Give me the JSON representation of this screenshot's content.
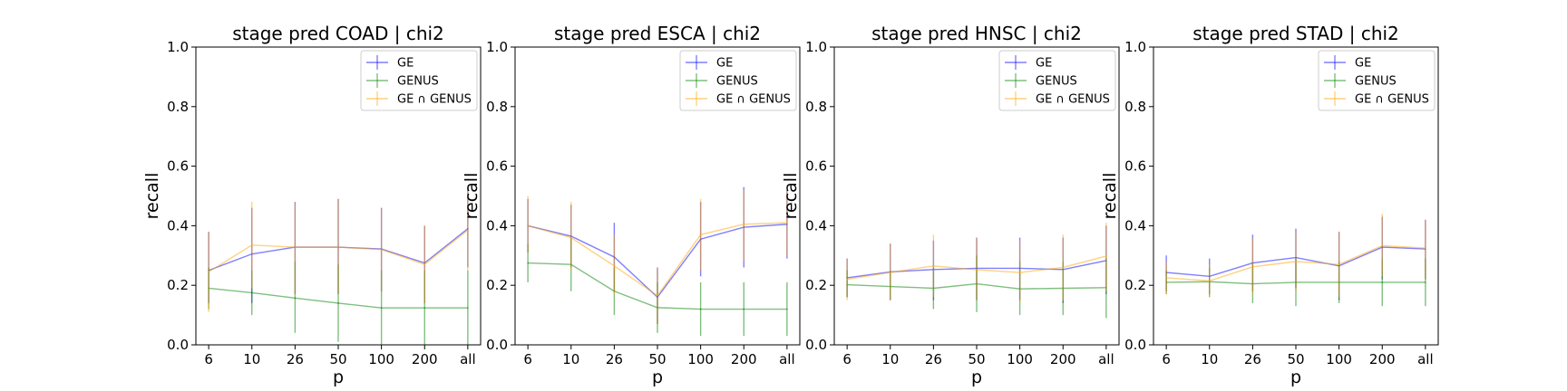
{
  "chart_data": [
    {
      "type": "line",
      "title": "stage pred COAD | chi2",
      "xlabel": "p",
      "ylabel": "recall",
      "categories": [
        "6",
        "10",
        "26",
        "50",
        "100",
        "200",
        "all"
      ],
      "ylim": [
        0,
        1.0
      ],
      "yticks": [
        "0.0",
        "0.2",
        "0.4",
        "0.6",
        "0.8",
        "1.0"
      ],
      "legend": "top-right",
      "series": [
        {
          "name": "GE",
          "values": [
            0.25,
            0.305,
            0.328,
            0.328,
            0.322,
            0.275,
            0.39
          ],
          "lower": [
            0.14,
            0.14,
            0.17,
            0.17,
            0.18,
            0.14,
            0.26
          ],
          "upper": [
            0.38,
            0.46,
            0.48,
            0.49,
            0.46,
            0.4,
            0.53
          ]
        },
        {
          "name": "GENUS",
          "values": [
            0.19,
            0.175,
            0.157,
            0.14,
            0.124,
            0.124,
            0.124
          ],
          "lower": [
            0.12,
            0.1,
            0.04,
            0.01,
            0.0,
            0.0,
            0.0
          ],
          "upper": [
            0.26,
            0.25,
            0.28,
            0.27,
            0.25,
            0.25,
            0.25
          ]
        },
        {
          "name": "GE ∩ GENUS",
          "values": [
            0.245,
            0.335,
            0.328,
            0.328,
            0.32,
            0.27,
            0.385
          ],
          "lower": [
            0.11,
            0.19,
            0.17,
            0.17,
            0.18,
            0.14,
            0.25
          ],
          "upper": [
            0.38,
            0.48,
            0.48,
            0.49,
            0.46,
            0.4,
            0.52
          ]
        }
      ]
    },
    {
      "type": "line",
      "title": "stage pred ESCA | chi2",
      "xlabel": "p",
      "ylabel": "recall",
      "categories": [
        "6",
        "10",
        "26",
        "50",
        "100",
        "200",
        "all"
      ],
      "ylim": [
        0,
        1.0
      ],
      "yticks": [
        "0.0",
        "0.2",
        "0.4",
        "0.6",
        "0.8",
        "1.0"
      ],
      "legend": "top-right",
      "series": [
        {
          "name": "GE",
          "values": [
            0.4,
            0.365,
            0.295,
            0.16,
            0.355,
            0.395,
            0.405
          ],
          "lower": [
            0.31,
            0.26,
            0.18,
            0.07,
            0.23,
            0.26,
            0.29
          ],
          "upper": [
            0.49,
            0.47,
            0.41,
            0.26,
            0.48,
            0.53,
            0.52
          ]
        },
        {
          "name": "GENUS",
          "values": [
            0.275,
            0.27,
            0.18,
            0.125,
            0.12,
            0.12,
            0.12
          ],
          "lower": [
            0.21,
            0.18,
            0.1,
            0.04,
            0.03,
            0.03,
            0.03
          ],
          "upper": [
            0.34,
            0.36,
            0.26,
            0.21,
            0.21,
            0.21,
            0.21
          ]
        },
        {
          "name": "GE ∩ GENUS",
          "values": [
            0.4,
            0.36,
            0.265,
            0.165,
            0.37,
            0.405,
            0.41
          ],
          "lower": [
            0.31,
            0.25,
            0.17,
            0.07,
            0.25,
            0.28,
            0.3
          ],
          "upper": [
            0.5,
            0.48,
            0.37,
            0.26,
            0.49,
            0.52,
            0.52
          ]
        }
      ]
    },
    {
      "type": "line",
      "title": "stage pred HNSC | chi2",
      "xlabel": "p",
      "ylabel": "recall",
      "categories": [
        "6",
        "10",
        "26",
        "50",
        "100",
        "200",
        "all"
      ],
      "ylim": [
        0,
        1.0
      ],
      "yticks": [
        "0.0",
        "0.2",
        "0.4",
        "0.6",
        "0.8",
        "1.0"
      ],
      "legend": "top-right",
      "series": [
        {
          "name": "GE",
          "values": [
            0.225,
            0.245,
            0.253,
            0.257,
            0.257,
            0.253,
            0.283
          ],
          "lower": [
            0.16,
            0.15,
            0.15,
            0.15,
            0.15,
            0.14,
            0.17
          ],
          "upper": [
            0.29,
            0.34,
            0.35,
            0.36,
            0.36,
            0.36,
            0.4
          ]
        },
        {
          "name": "GENUS",
          "values": [
            0.202,
            0.196,
            0.19,
            0.205,
            0.188,
            0.19,
            0.192
          ],
          "lower": [
            0.16,
            0.15,
            0.12,
            0.11,
            0.1,
            0.1,
            0.09
          ],
          "upper": [
            0.25,
            0.25,
            0.26,
            0.3,
            0.28,
            0.28,
            0.29
          ]
        },
        {
          "name": "GE ∩ GENUS",
          "values": [
            0.22,
            0.243,
            0.265,
            0.252,
            0.243,
            0.26,
            0.298
          ],
          "lower": [
            0.15,
            0.15,
            0.16,
            0.15,
            0.14,
            0.15,
            0.18
          ],
          "upper": [
            0.29,
            0.34,
            0.37,
            0.36,
            0.35,
            0.37,
            0.41
          ]
        }
      ]
    },
    {
      "type": "line",
      "title": "stage pred STAD | chi2",
      "xlabel": "p",
      "ylabel": "recall",
      "categories": [
        "6",
        "10",
        "26",
        "50",
        "100",
        "200",
        "all"
      ],
      "ylim": [
        0,
        1.0
      ],
      "yticks": [
        "0.0",
        "0.2",
        "0.4",
        "0.6",
        "0.8",
        "1.0"
      ],
      "legend": "top-right",
      "series": [
        {
          "name": "GE",
          "values": [
            0.243,
            0.23,
            0.275,
            0.293,
            0.265,
            0.328,
            0.322
          ],
          "lower": [
            0.18,
            0.17,
            0.18,
            0.19,
            0.15,
            0.22,
            0.22
          ],
          "upper": [
            0.3,
            0.29,
            0.37,
            0.39,
            0.38,
            0.43,
            0.42
          ]
        },
        {
          "name": "GENUS",
          "values": [
            0.21,
            0.212,
            0.205,
            0.21,
            0.21,
            0.21,
            0.21
          ],
          "lower": [
            0.17,
            0.16,
            0.14,
            0.13,
            0.14,
            0.13,
            0.13
          ],
          "upper": [
            0.25,
            0.26,
            0.27,
            0.29,
            0.28,
            0.29,
            0.29
          ]
        },
        {
          "name": "GE ∩ GENUS",
          "values": [
            0.225,
            0.215,
            0.262,
            0.28,
            0.27,
            0.333,
            0.325
          ],
          "lower": [
            0.17,
            0.16,
            0.17,
            0.18,
            0.16,
            0.23,
            0.22
          ],
          "upper": [
            0.28,
            0.27,
            0.36,
            0.38,
            0.38,
            0.44,
            0.42
          ]
        }
      ]
    }
  ],
  "colors": {
    "GE": "#0000ff",
    "GENUS": "#008000",
    "GE ∩ GENUS": "#ffa500",
    "axes": "#000000",
    "background": "#ffffff"
  }
}
